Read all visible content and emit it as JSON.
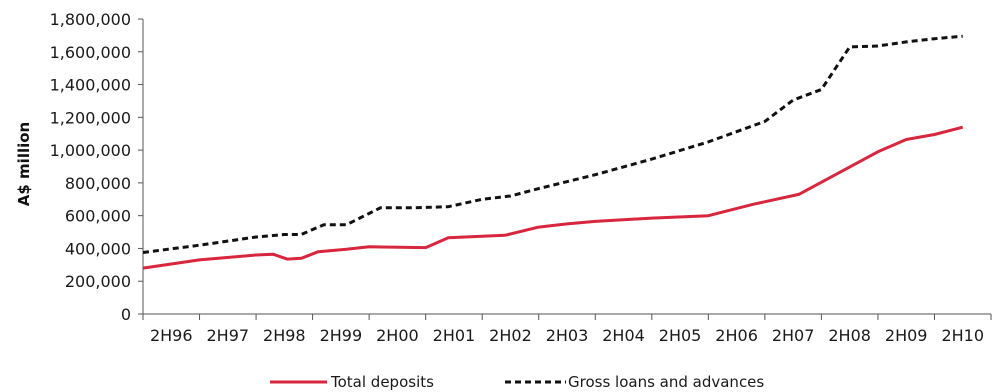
{
  "chart_data": {
    "type": "line",
    "title": "",
    "xlabel": "",
    "ylabel": "A$ million",
    "ylim": [
      0,
      1800000
    ],
    "y_ticks": [
      0,
      200000,
      400000,
      600000,
      800000,
      1000000,
      1200000,
      1400000,
      1600000,
      1800000
    ],
    "y_tick_labels": [
      "0",
      "200,000",
      "400,000",
      "600,000",
      "800,000",
      "1,000,000",
      "1,200,000",
      "1,400,000",
      "1,600,000",
      "1,800,000"
    ],
    "categories": [
      "2H96",
      "2H97",
      "2H98",
      "2H99",
      "2H00",
      "2H01",
      "2H02",
      "2H03",
      "2H04",
      "2H05",
      "2H06",
      "2H07",
      "2H08",
      "2H09",
      "2H10"
    ],
    "xlim": [
      0,
      15
    ],
    "grid": false,
    "legend_position": "bottom",
    "series": [
      {
        "name": "Total deposits",
        "color": "#d7263d",
        "style": "solid",
        "points": [
          [
            0.0,
            280000
          ],
          [
            1.0,
            330000
          ],
          [
            2.0,
            360000
          ],
          [
            2.3,
            365000
          ],
          [
            2.55,
            335000
          ],
          [
            2.8,
            340000
          ],
          [
            3.1,
            380000
          ],
          [
            3.6,
            395000
          ],
          [
            4.0,
            410000
          ],
          [
            5.0,
            405000
          ],
          [
            5.4,
            465000
          ],
          [
            6.0,
            475000
          ],
          [
            6.4,
            480000
          ],
          [
            7.0,
            530000
          ],
          [
            7.5,
            550000
          ],
          [
            8.0,
            565000
          ],
          [
            9.0,
            585000
          ],
          [
            10.0,
            600000
          ],
          [
            10.8,
            670000
          ],
          [
            11.6,
            730000
          ],
          [
            12.3,
            860000
          ],
          [
            13.0,
            990000
          ],
          [
            13.5,
            1065000
          ],
          [
            14.0,
            1095000
          ],
          [
            14.5,
            1140000
          ]
        ]
      },
      {
        "name": "Gross loans and advances",
        "color": "#111111",
        "style": "dashed",
        "points": [
          [
            0.0,
            375000
          ],
          [
            1.0,
            420000
          ],
          [
            2.0,
            470000
          ],
          [
            2.5,
            485000
          ],
          [
            2.8,
            485000
          ],
          [
            3.2,
            545000
          ],
          [
            3.6,
            545000
          ],
          [
            4.2,
            648000
          ],
          [
            4.8,
            648000
          ],
          [
            5.4,
            655000
          ],
          [
            6.0,
            700000
          ],
          [
            6.5,
            720000
          ],
          [
            7.0,
            765000
          ],
          [
            8.0,
            850000
          ],
          [
            9.0,
            945000
          ],
          [
            10.0,
            1050000
          ],
          [
            11.0,
            1175000
          ],
          [
            11.5,
            1305000
          ],
          [
            12.0,
            1370000
          ],
          [
            12.5,
            1630000
          ],
          [
            13.0,
            1635000
          ],
          [
            13.5,
            1660000
          ],
          [
            14.0,
            1680000
          ],
          [
            14.5,
            1695000
          ]
        ]
      }
    ]
  }
}
